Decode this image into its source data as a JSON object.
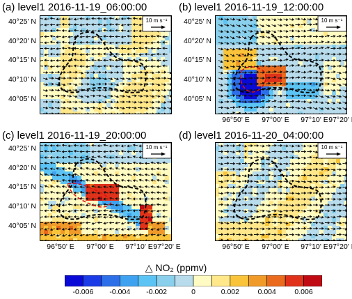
{
  "colorbar": {
    "title": "△ NO₂ (ppmv)",
    "colors": [
      "#0a0ad6",
      "#1a3be6",
      "#2d6fe8",
      "#3fa2f0",
      "#5cc4f4",
      "#8ad0ec",
      "#b8dcec",
      "#fffbc2",
      "#ffe78a",
      "#f9c43a",
      "#f09a2a",
      "#ea6b1e",
      "#e0321a",
      "#c00a14"
    ],
    "ticks": [
      "-0.006",
      "-0.004",
      "-0.002",
      "0",
      "0.002",
      "0.004",
      "0.006"
    ]
  },
  "chart_data": [
    {
      "type": "heatmap",
      "title": "(a) level1 2016-11-19_06:00:00",
      "variable": "△ NO₂ (ppmv)",
      "ytick_labels": [
        "40°25' N",
        "40°20' N",
        "40°15' N",
        "40°10' N",
        "40°05' N"
      ],
      "xtick_labels": [],
      "ref_vector": "10 m s⁻¹",
      "value_range": [
        -0.002,
        0.002
      ],
      "dominant_wind": "easterly (west-blowing arrows turning to eastward in lower half)"
    },
    {
      "type": "heatmap",
      "title": "(b) level1 2016-11-19_12:00:00",
      "variable": "△ NO₂ (ppmv)",
      "ytick_labels": [
        "40°25' N",
        "40°20' N",
        "40°15' N",
        "40°10' N",
        "40°05' N"
      ],
      "xtick_labels": [
        "96°50' E",
        "97°00' E",
        "97°10' E",
        "97°20' E"
      ],
      "ref_vector": "10 m s⁻¹",
      "value_range": [
        -0.006,
        0.006
      ],
      "dominant_wind": "westerly"
    },
    {
      "type": "heatmap",
      "title": "(c) level1 2016-11-19_20:00:00",
      "variable": "△ NO₂ (ppmv)",
      "ytick_labels": [
        "40°25' N",
        "40°20' N",
        "40°15' N",
        "40°10' N",
        "40°05' N"
      ],
      "xtick_labels": [
        "96°50' E",
        "97°00' E",
        "97°10' E",
        "97°20' E"
      ],
      "ref_vector": "10 m s⁻¹",
      "value_range": [
        -0.004,
        0.006
      ],
      "dominant_wind": "easterly"
    },
    {
      "type": "heatmap",
      "title": "(d) level1 2016-11-20_04:00:00",
      "variable": "△ NO₂ (ppmv)",
      "ytick_labels": [],
      "xtick_labels": [
        "96°50' E",
        "97°00' E",
        "97°10' E",
        "97°20' E"
      ],
      "ref_vector": "10 m s⁻¹",
      "value_range": [
        -0.002,
        0.002
      ],
      "dominant_wind": "westerly"
    }
  ]
}
